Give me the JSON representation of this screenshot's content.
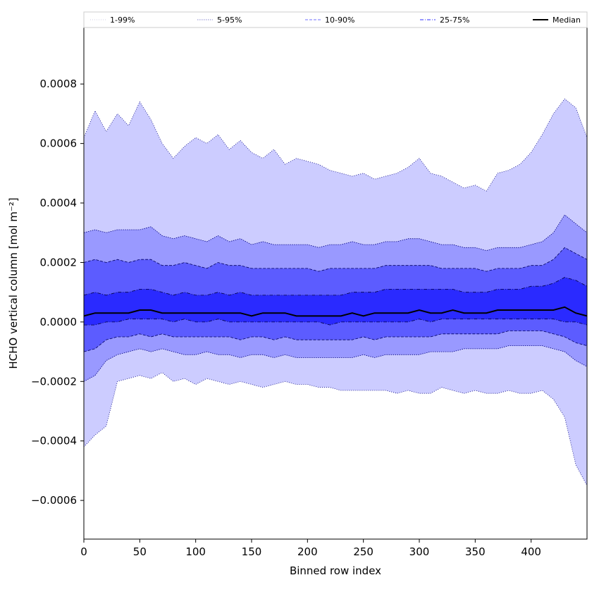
{
  "chart_data": {
    "type": "area",
    "title": "",
    "xlabel": "Binned row index",
    "ylabel": "HCHO vertical column [mol m⁻²]",
    "xlim": [
      0,
      450
    ],
    "ylim": [
      -0.00073,
      0.00099
    ],
    "x_ticks": [
      0,
      50,
      100,
      150,
      200,
      250,
      300,
      350,
      400
    ],
    "y_ticks": [
      -0.0006,
      -0.0004,
      -0.0002,
      0.0,
      0.0002,
      0.0004,
      0.0006,
      0.0008
    ],
    "x_tick_labels": [
      "0",
      "50",
      "100",
      "150",
      "200",
      "250",
      "300",
      "350",
      "400"
    ],
    "y_tick_labels": [
      "−0.0006",
      "−0.0004",
      "−0.0002",
      "0.0000",
      "0.0002",
      "0.0004",
      "0.0006",
      "0.0008"
    ],
    "grid": false,
    "legend_position": "top",
    "x": [
      0,
      10,
      20,
      30,
      40,
      50,
      60,
      70,
      80,
      90,
      100,
      110,
      120,
      130,
      140,
      150,
      160,
      170,
      180,
      190,
      200,
      210,
      220,
      230,
      240,
      250,
      260,
      270,
      280,
      290,
      300,
      310,
      320,
      330,
      340,
      350,
      360,
      370,
      380,
      390,
      400,
      410,
      420,
      430,
      440,
      450
    ],
    "series": [
      {
        "name": "1-99%",
        "style": "thin-dotted",
        "color": "#ccccff",
        "lower": [
          -0.00042,
          -0.00038,
          -0.00035,
          -0.0002,
          -0.00019,
          -0.00018,
          -0.00019,
          -0.00017,
          -0.0002,
          -0.00019,
          -0.00021,
          -0.00019,
          -0.0002,
          -0.00021,
          -0.0002,
          -0.00021,
          -0.00022,
          -0.00021,
          -0.0002,
          -0.00021,
          -0.00021,
          -0.00022,
          -0.00022,
          -0.00023,
          -0.00023,
          -0.00023,
          -0.00023,
          -0.00023,
          -0.00024,
          -0.00023,
          -0.00024,
          -0.00024,
          -0.00022,
          -0.00023,
          -0.00024,
          -0.00023,
          -0.00024,
          -0.00024,
          -0.00023,
          -0.00024,
          -0.00024,
          -0.00023,
          -0.00026,
          -0.00032,
          -0.00048,
          -0.00055
        ],
        "upper": [
          0.00062,
          0.00071,
          0.00064,
          0.0007,
          0.00066,
          0.00074,
          0.00068,
          0.0006,
          0.00055,
          0.00059,
          0.00062,
          0.0006,
          0.00063,
          0.00058,
          0.00061,
          0.00057,
          0.00055,
          0.00058,
          0.00053,
          0.00055,
          0.00054,
          0.00053,
          0.00051,
          0.0005,
          0.00049,
          0.0005,
          0.00048,
          0.00049,
          0.0005,
          0.00052,
          0.00055,
          0.0005,
          0.00049,
          0.00047,
          0.00045,
          0.00046,
          0.00044,
          0.0005,
          0.00051,
          0.00053,
          0.00057,
          0.00063,
          0.0007,
          0.00075,
          0.00072,
          0.00062
        ]
      },
      {
        "name": "5-95%",
        "style": "dotted",
        "color": "#9999ff",
        "lower": [
          -0.0002,
          -0.00018,
          -0.00013,
          -0.00011,
          -0.0001,
          -9e-05,
          -0.0001,
          -9e-05,
          -0.0001,
          -0.00011,
          -0.00011,
          -0.0001,
          -0.00011,
          -0.00011,
          -0.00012,
          -0.00011,
          -0.00011,
          -0.00012,
          -0.00011,
          -0.00012,
          -0.00012,
          -0.00012,
          -0.00012,
          -0.00012,
          -0.00012,
          -0.00011,
          -0.00012,
          -0.00011,
          -0.00011,
          -0.00011,
          -0.00011,
          -0.0001,
          -0.0001,
          -0.0001,
          -9e-05,
          -9e-05,
          -9e-05,
          -9e-05,
          -8e-05,
          -8e-05,
          -8e-05,
          -8e-05,
          -9e-05,
          -0.0001,
          -0.00013,
          -0.00015
        ],
        "upper": [
          0.0003,
          0.00031,
          0.0003,
          0.00031,
          0.00031,
          0.00031,
          0.00032,
          0.00029,
          0.00028,
          0.00029,
          0.00028,
          0.00027,
          0.00029,
          0.00027,
          0.00028,
          0.00026,
          0.00027,
          0.00026,
          0.00026,
          0.00026,
          0.00026,
          0.00025,
          0.00026,
          0.00026,
          0.00027,
          0.00026,
          0.00026,
          0.00027,
          0.00027,
          0.00028,
          0.00028,
          0.00027,
          0.00026,
          0.00026,
          0.00025,
          0.00025,
          0.00024,
          0.00025,
          0.00025,
          0.00025,
          0.00026,
          0.00027,
          0.0003,
          0.00036,
          0.00033,
          0.0003
        ]
      },
      {
        "name": "10-90%",
        "style": "dashed",
        "color": "#5c5cff",
        "lower": [
          -0.0001,
          -9e-05,
          -6e-05,
          -5e-05,
          -5e-05,
          -4e-05,
          -5e-05,
          -4e-05,
          -5e-05,
          -5e-05,
          -5e-05,
          -5e-05,
          -5e-05,
          -5e-05,
          -6e-05,
          -5e-05,
          -5e-05,
          -6e-05,
          -5e-05,
          -6e-05,
          -6e-05,
          -6e-05,
          -6e-05,
          -6e-05,
          -6e-05,
          -5e-05,
          -6e-05,
          -5e-05,
          -5e-05,
          -5e-05,
          -5e-05,
          -5e-05,
          -4e-05,
          -4e-05,
          -4e-05,
          -4e-05,
          -4e-05,
          -4e-05,
          -3e-05,
          -3e-05,
          -3e-05,
          -3e-05,
          -4e-05,
          -5e-05,
          -7e-05,
          -8e-05
        ],
        "upper": [
          0.0002,
          0.00021,
          0.0002,
          0.00021,
          0.0002,
          0.00021,
          0.00021,
          0.00019,
          0.00019,
          0.0002,
          0.00019,
          0.00018,
          0.0002,
          0.00019,
          0.00019,
          0.00018,
          0.00018,
          0.00018,
          0.00018,
          0.00018,
          0.00018,
          0.00017,
          0.00018,
          0.00018,
          0.00018,
          0.00018,
          0.00018,
          0.00019,
          0.00019,
          0.00019,
          0.00019,
          0.00019,
          0.00018,
          0.00018,
          0.00018,
          0.00018,
          0.00017,
          0.00018,
          0.00018,
          0.00018,
          0.00019,
          0.00019,
          0.00021,
          0.00025,
          0.00023,
          0.00021
        ]
      },
      {
        "name": "25-75%",
        "style": "dash-dot",
        "color": "#2a2aff",
        "lower": [
          -1e-05,
          -1e-05,
          0.0,
          0.0,
          1e-05,
          1e-05,
          1e-05,
          1e-05,
          0.0,
          1e-05,
          0.0,
          0.0,
          1e-05,
          0.0,
          0.0,
          0.0,
          0.0,
          0.0,
          0.0,
          0.0,
          0.0,
          0.0,
          -1e-05,
          0.0,
          0.0,
          0.0,
          0.0,
          0.0,
          0.0,
          0.0,
          1e-05,
          0.0,
          1e-05,
          1e-05,
          1e-05,
          1e-05,
          1e-05,
          1e-05,
          1e-05,
          1e-05,
          1e-05,
          1e-05,
          1e-05,
          0.0,
          0.0,
          -1e-05
        ],
        "upper": [
          9e-05,
          0.0001,
          9e-05,
          0.0001,
          0.0001,
          0.00011,
          0.00011,
          0.0001,
          9e-05,
          0.0001,
          9e-05,
          9e-05,
          0.0001,
          9e-05,
          0.0001,
          9e-05,
          9e-05,
          9e-05,
          9e-05,
          9e-05,
          9e-05,
          9e-05,
          9e-05,
          9e-05,
          0.0001,
          0.0001,
          0.0001,
          0.00011,
          0.00011,
          0.00011,
          0.00011,
          0.00011,
          0.00011,
          0.00011,
          0.0001,
          0.0001,
          0.0001,
          0.00011,
          0.00011,
          0.00011,
          0.00012,
          0.00012,
          0.00013,
          0.00015,
          0.00014,
          0.00012
        ]
      },
      {
        "name": "Median",
        "style": "solid",
        "color": "#000000",
        "values": [
          2e-05,
          3e-05,
          3e-05,
          3e-05,
          3e-05,
          4e-05,
          4e-05,
          3e-05,
          3e-05,
          3e-05,
          3e-05,
          3e-05,
          3e-05,
          3e-05,
          3e-05,
          2e-05,
          3e-05,
          3e-05,
          3e-05,
          2e-05,
          2e-05,
          2e-05,
          2e-05,
          2e-05,
          3e-05,
          2e-05,
          3e-05,
          3e-05,
          3e-05,
          3e-05,
          4e-05,
          3e-05,
          3e-05,
          4e-05,
          3e-05,
          3e-05,
          3e-05,
          4e-05,
          4e-05,
          4e-05,
          4e-05,
          4e-05,
          4e-05,
          5e-05,
          3e-05,
          2e-05
        ]
      }
    ],
    "fill_colors": {
      "outer": "#ccccff",
      "p5_95": "#9999ff",
      "p10_90": "#5c5cff",
      "p25_75": "#2a2aff",
      "median": "#000000"
    }
  }
}
